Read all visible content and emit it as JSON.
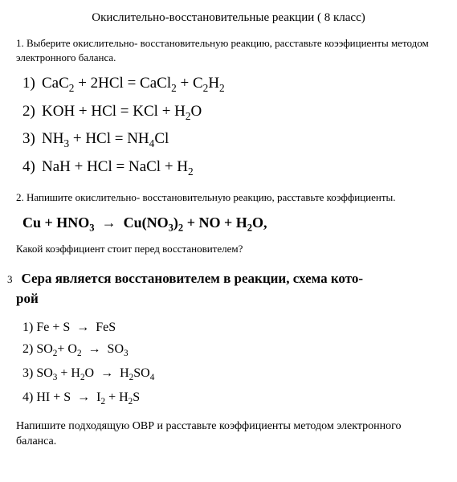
{
  "title": "Окислительно-восстановительные реакции ( 8 класс)",
  "task1": {
    "text": "1. Выберите окислительно- восстановительную реакцию, расставьте коээфициенты методом электронного баланса.",
    "equations": [
      {
        "num": "1)",
        "html": "CaC<sub>2</sub> + 2HCl = CaCl<sub>2</sub> + C<sub>2</sub>H<sub>2</sub>"
      },
      {
        "num": "2)",
        "html": "KOH + HCl = KCl + H<sub>2</sub>O"
      },
      {
        "num": "3)",
        "html": "NH<sub>3</sub> + HCl = NH<sub>4</sub>Cl"
      },
      {
        "num": "4)",
        "html": "NaH + HCl = NaCl + H<sub>2</sub>"
      }
    ]
  },
  "task2": {
    "text": "2. Напишите окислительно- восстановительную реакцию, расставьте коэффициенты.",
    "equation_html": "Cu + HNO<sub>3</sub>&nbsp;&nbsp;→&nbsp;&nbsp;Cu(NO<sub>3</sub>)<sub>2</sub> + NO + H<sub>2</sub>O,",
    "question": "Какой коэффициент стоит перед восстановителем?"
  },
  "task3": {
    "num": "3",
    "header_line1": "Сера является восстановителем в реакции, схема кото-",
    "header_line2": "рой",
    "equations": [
      {
        "num": "1)",
        "html": "Fe + S&nbsp;&nbsp;→&nbsp;&nbsp;FeS"
      },
      {
        "num": "2)",
        "html": "SO<sub>2</sub>+ O<sub>2</sub>&nbsp;&nbsp;→&nbsp;&nbsp;SO<sub>3</sub>"
      },
      {
        "num": "3)",
        "html": "SO<sub>3</sub> + H<sub>2</sub>O&nbsp;&nbsp;→&nbsp;&nbsp;H<sub>2</sub>SO<sub>4</sub>"
      },
      {
        "num": "4)",
        "html": "HI + S&nbsp;&nbsp;→&nbsp;&nbsp;I<sub>2</sub> + H<sub>2</sub>S"
      }
    ],
    "final": "Напишите подходящую ОВР и расставьте коэффициенты методом электронного баланса."
  }
}
